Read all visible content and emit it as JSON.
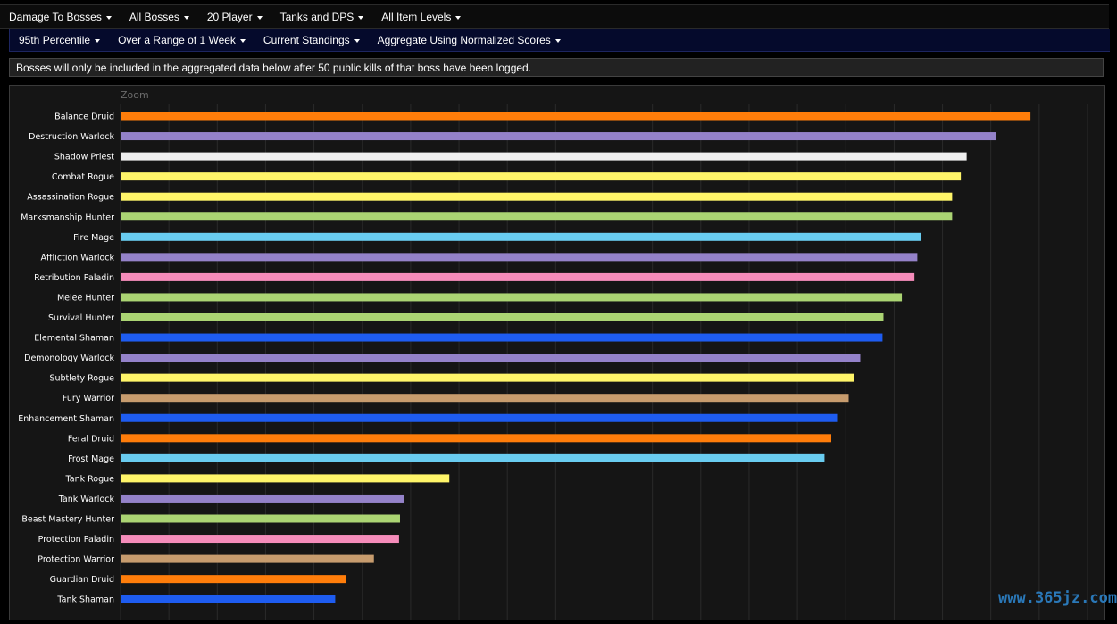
{
  "menu_row1": [
    {
      "label": "Damage To Bosses"
    },
    {
      "label": "All Bosses"
    },
    {
      "label": "20 Player"
    },
    {
      "label": "Tanks and DPS"
    },
    {
      "label": "All Item Levels"
    }
  ],
  "menu_row2": [
    {
      "label": "95th Percentile"
    },
    {
      "label": "Over a Range of 1 Week"
    },
    {
      "label": "Current Standings"
    },
    {
      "label": "Aggregate Using Normalized Scores"
    }
  ],
  "notice": "Bosses will only be included in the aggregated data below after 50 public kills of that boss have been logged.",
  "chart": {
    "zoom_label": "Zoom"
  },
  "watermark": "www.365jz.com",
  "chart_data": {
    "type": "bar",
    "orientation": "horizontal",
    "xlim": [
      0,
      100
    ],
    "grid": true,
    "categories": [
      "Balance Druid",
      "Destruction Warlock",
      "Shadow Priest",
      "Combat Rogue",
      "Assassination Rogue",
      "Marksmanship Hunter",
      "Fire Mage",
      "Affliction Warlock",
      "Retribution Paladin",
      "Melee Hunter",
      "Survival Hunter",
      "Elemental Shaman",
      "Demonology Warlock",
      "Subtlety Rogue",
      "Fury Warrior",
      "Enhancement Shaman",
      "Feral Druid",
      "Frost Mage",
      "Tank Rogue",
      "Tank Warlock",
      "Beast Mastery Hunter",
      "Protection Paladin",
      "Protection Warrior",
      "Guardian Druid",
      "Tank Shaman"
    ],
    "values": [
      94.1,
      90.5,
      87.5,
      86.9,
      86.0,
      86.0,
      82.8,
      82.4,
      82.1,
      80.8,
      78.9,
      78.8,
      76.5,
      75.9,
      75.3,
      74.1,
      73.5,
      72.8,
      34.0,
      29.3,
      28.9,
      28.8,
      26.2,
      23.3,
      22.2
    ],
    "colors": [
      "#ff7d0a",
      "#9482c9",
      "#f0f0f0",
      "#fff569",
      "#fff569",
      "#abd473",
      "#69ccf0",
      "#9482c9",
      "#f58cba",
      "#abd473",
      "#abd473",
      "#1e5cf0",
      "#9482c9",
      "#fff569",
      "#c79c6e",
      "#1e5cf0",
      "#ff7d0a",
      "#69ccf0",
      "#fff569",
      "#9482c9",
      "#abd473",
      "#f58cba",
      "#c79c6e",
      "#ff7d0a",
      "#1e5cf0"
    ]
  }
}
